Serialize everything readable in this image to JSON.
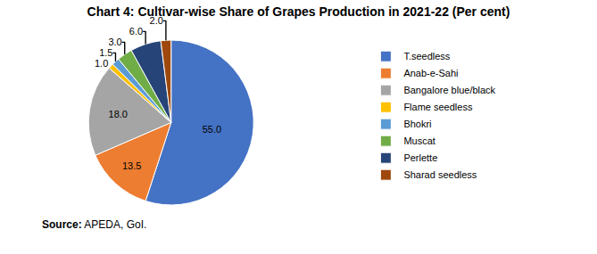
{
  "chart_data": {
    "type": "pie",
    "title": "Chart 4: Cultivar-wise Share of Grapes Production in 2021-22 (Per cent)",
    "categories": [
      "T.seedless",
      "Anab-e-Sahi",
      "Bangalore blue/black",
      "Flame seedless",
      "Bhokri",
      "Muscat",
      "Perlette",
      "Sharad seedless"
    ],
    "values": [
      55.0,
      13.5,
      18.0,
      1.0,
      1.5,
      3.0,
      6.0,
      2.0
    ],
    "value_labels": [
      "55.0",
      "13.5",
      "18.0",
      "1.0",
      "1.5",
      "3.0",
      "6.0",
      "2.0"
    ],
    "colors": [
      "#4472c4",
      "#ed7d31",
      "#a5a5a5",
      "#ffc000",
      "#5b9bd5",
      "#70ad47",
      "#264478",
      "#9e480e"
    ],
    "data_labels": true,
    "legend": "right",
    "source": {
      "label": "Source:",
      "text": "APEDA, GoI."
    }
  }
}
